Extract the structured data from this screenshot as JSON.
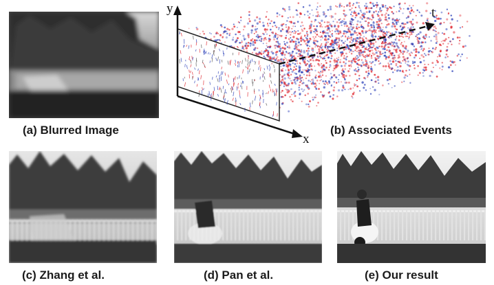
{
  "panels": {
    "a": {
      "caption": "(a) Blurred Image"
    },
    "b": {
      "caption": "(b) Associated Events",
      "axis_y": "y",
      "axis_t": "t",
      "axis_x": "x"
    },
    "c": {
      "caption": "(c) Zhang et al."
    },
    "d": {
      "caption": "(d) Pan et al."
    },
    "e": {
      "caption": "(e) Our result"
    }
  },
  "colors": {
    "positive_event": "#e0242c",
    "negative_event": "#2a3fb8",
    "background": "#ffffff"
  }
}
